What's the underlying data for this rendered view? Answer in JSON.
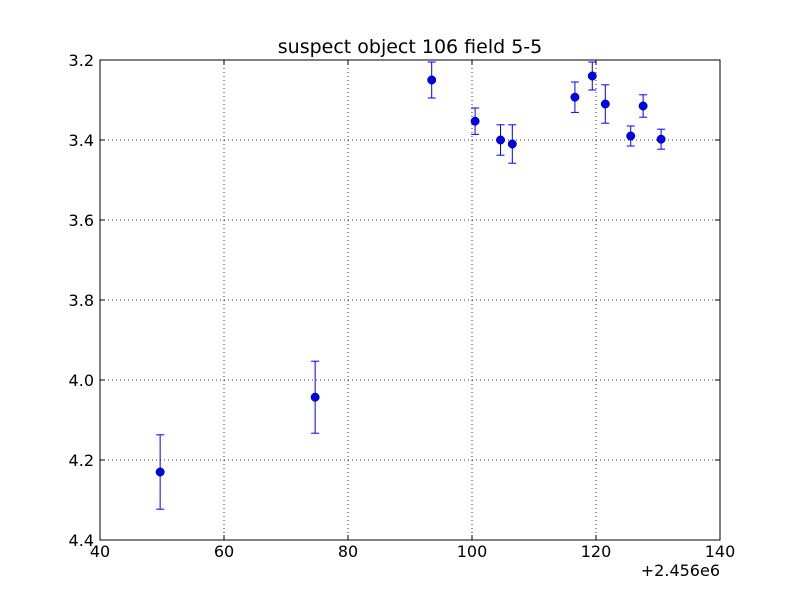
{
  "chart_data": {
    "type": "scatter",
    "title": "suspect object 106 field 5-5",
    "xlabel": "",
    "ylabel": "",
    "x_offset_label": "+2.456e6",
    "xlim": [
      40,
      140
    ],
    "ylim": [
      3.2,
      4.4
    ],
    "y_inverted": true,
    "grid": true,
    "x_ticks": [
      40,
      60,
      80,
      100,
      120,
      140
    ],
    "y_ticks": [
      3.2,
      3.4,
      3.6,
      3.8,
      4.0,
      4.2,
      4.4
    ],
    "x_tick_labels": [
      "40",
      "60",
      "80",
      "100",
      "120",
      "140"
    ],
    "y_tick_labels": [
      "3.2",
      "3.4",
      "3.6",
      "3.8",
      "4.0",
      "4.2",
      "4.4"
    ],
    "marker_color": "#0000ff",
    "series": [
      {
        "points": [
          {
            "x": 49.7,
            "y": 4.23,
            "err": 0.093
          },
          {
            "x": 74.7,
            "y": 4.043,
            "err": 0.09
          },
          {
            "x": 93.5,
            "y": 3.25,
            "err": 0.045
          },
          {
            "x": 100.5,
            "y": 3.353,
            "err": 0.033
          },
          {
            "x": 104.6,
            "y": 3.4,
            "err": 0.038
          },
          {
            "x": 106.5,
            "y": 3.41,
            "err": 0.048
          },
          {
            "x": 116.6,
            "y": 3.293,
            "err": 0.038
          },
          {
            "x": 119.4,
            "y": 3.24,
            "err": 0.035
          },
          {
            "x": 121.5,
            "y": 3.31,
            "err": 0.048
          },
          {
            "x": 125.6,
            "y": 3.39,
            "err": 0.025
          },
          {
            "x": 127.6,
            "y": 3.315,
            "err": 0.028
          },
          {
            "x": 130.5,
            "y": 3.398,
            "err": 0.025
          }
        ]
      }
    ]
  }
}
